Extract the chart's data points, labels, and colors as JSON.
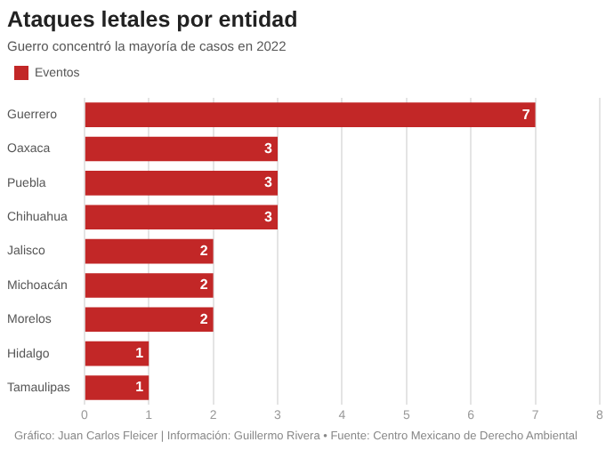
{
  "chart_data": {
    "type": "bar",
    "orientation": "horizontal",
    "title": "Ataques letales por entidad",
    "subtitle": "Guerro concentró la mayoría de casos en 2022",
    "categories": [
      "Guerrero",
      "Oaxaca",
      "Puebla",
      "Chihuahua",
      "Jalisco",
      "Michoacán",
      "Morelos",
      "Hidalgo",
      "Tamaulipas"
    ],
    "series": [
      {
        "name": "Eventos",
        "color": "#c22727",
        "values": [
          7,
          3,
          3,
          3,
          2,
          2,
          2,
          1,
          1
        ]
      }
    ],
    "xlim": [
      0,
      8
    ],
    "xticks": [
      0,
      1,
      2,
      3,
      4,
      5,
      6,
      7,
      8
    ],
    "grid": "x",
    "legend": "top left",
    "data_labels": true,
    "annotations": [
      "Gráfico: Juan Carlos Fleicer | Información: Guillermo Rivera • Fuente: Centro Mexicano de Derecho Ambiental"
    ]
  }
}
